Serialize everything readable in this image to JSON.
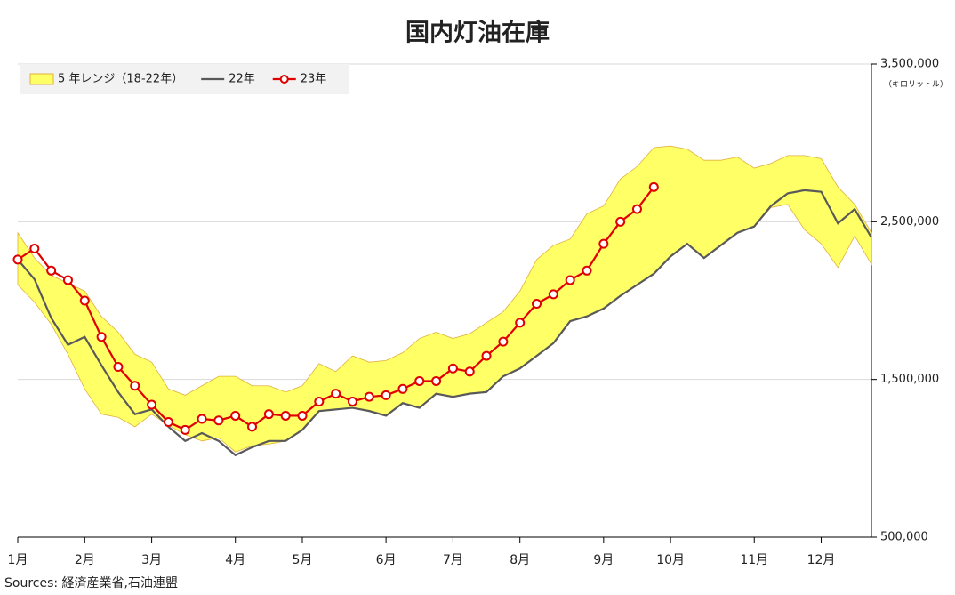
{
  "chart_data": {
    "type": "line",
    "title": "国内灯油在庫",
    "unit_note": "（キロリットル）",
    "source": "Sources: 経済産業省,石油連盟",
    "categories": [
      "1月",
      null,
      null,
      null,
      "2月",
      null,
      null,
      null,
      "3月",
      null,
      null,
      null,
      null,
      "4月",
      null,
      null,
      null,
      "5月",
      null,
      null,
      null,
      null,
      "6月",
      null,
      null,
      null,
      "7月",
      null,
      null,
      null,
      "8月",
      null,
      null,
      null,
      null,
      "9月",
      null,
      null,
      null,
      "10月",
      null,
      null,
      null,
      null,
      "11月",
      null,
      null,
      null,
      "12月",
      null,
      null,
      null
    ],
    "ylim": [
      500000,
      3500000
    ],
    "yticks": [
      {
        "value": 500000,
        "label": "500,000"
      },
      {
        "value": 1500000,
        "label": "1,500,000"
      },
      {
        "value": 2500000,
        "label": "2,500,000"
      },
      {
        "value": 3500000,
        "label": "3,500,000"
      }
    ],
    "grid": true,
    "legend": "top-left",
    "series": [
      {
        "name": "5 年レンジ（18-22年）",
        "kind": "range",
        "color": "#ffff66",
        "edge_color": "#e0b040",
        "high": [
          2430000,
          2270000,
          2160000,
          2110000,
          2060000,
          1900000,
          1800000,
          1660000,
          1610000,
          1440000,
          1400000,
          1460000,
          1520000,
          1520000,
          1460000,
          1460000,
          1420000,
          1460000,
          1600000,
          1550000,
          1650000,
          1610000,
          1620000,
          1670000,
          1760000,
          1800000,
          1760000,
          1790000,
          1860000,
          1930000,
          2060000,
          2260000,
          2350000,
          2390000,
          2550000,
          2600000,
          2770000,
          2850000,
          2970000,
          2980000,
          2960000,
          2890000,
          2890000,
          2910000,
          2840000,
          2870000,
          2920000,
          2920000,
          2900000,
          2720000,
          2610000,
          2430000
        ],
        "low": [
          2100000,
          1990000,
          1850000,
          1660000,
          1440000,
          1280000,
          1260000,
          1200000,
          1280000,
          1210000,
          1150000,
          1110000,
          1130000,
          1040000,
          1080000,
          1090000,
          1110000,
          1180000,
          1300000,
          1310000,
          1320000,
          1300000,
          1270000,
          1350000,
          1320000,
          1410000,
          1390000,
          1410000,
          1420000,
          1520000,
          1570000,
          1650000,
          1730000,
          1870000,
          1900000,
          1950000,
          2030000,
          2100000,
          2170000,
          2280000,
          2360000,
          2270000,
          2350000,
          2430000,
          2470000,
          2590000,
          2610000,
          2450000,
          2360000,
          2210000,
          2410000,
          2230000
        ]
      },
      {
        "name": "22年",
        "kind": "line",
        "color": "#595959",
        "values": [
          2260000,
          2135000,
          1890000,
          1720000,
          1770000,
          1590000,
          1420000,
          1280000,
          1310000,
          1200000,
          1110000,
          1160000,
          1110000,
          1020000,
          1070000,
          1110000,
          1110000,
          1180000,
          1300000,
          1310000,
          1320000,
          1300000,
          1270000,
          1350000,
          1320000,
          1410000,
          1390000,
          1410000,
          1420000,
          1520000,
          1570000,
          1650000,
          1730000,
          1870000,
          1900000,
          1950000,
          2030000,
          2100000,
          2170000,
          2280000,
          2360000,
          2270000,
          2350000,
          2430000,
          2470000,
          2600000,
          2680000,
          2700000,
          2690000,
          2490000,
          2580000,
          2400000
        ]
      },
      {
        "name": "23年",
        "kind": "marker-line",
        "color": "#e00000",
        "values": [
          2260000,
          2330000,
          2190000,
          2130000,
          2000000,
          1770000,
          1580000,
          1460000,
          1340000,
          1230000,
          1180000,
          1250000,
          1240000,
          1270000,
          1200000,
          1280000,
          1270000,
          1270000,
          1360000,
          1410000,
          1360000,
          1390000,
          1400000,
          1440000,
          1490000,
          1490000,
          1570000,
          1550000,
          1650000,
          1740000,
          1860000,
          1980000,
          2040000,
          2130000,
          2190000,
          2360000,
          2500000,
          2580000,
          2720000,
          null,
          null,
          null,
          null,
          null,
          null,
          null,
          null,
          null,
          null,
          null,
          null,
          null
        ]
      }
    ]
  }
}
